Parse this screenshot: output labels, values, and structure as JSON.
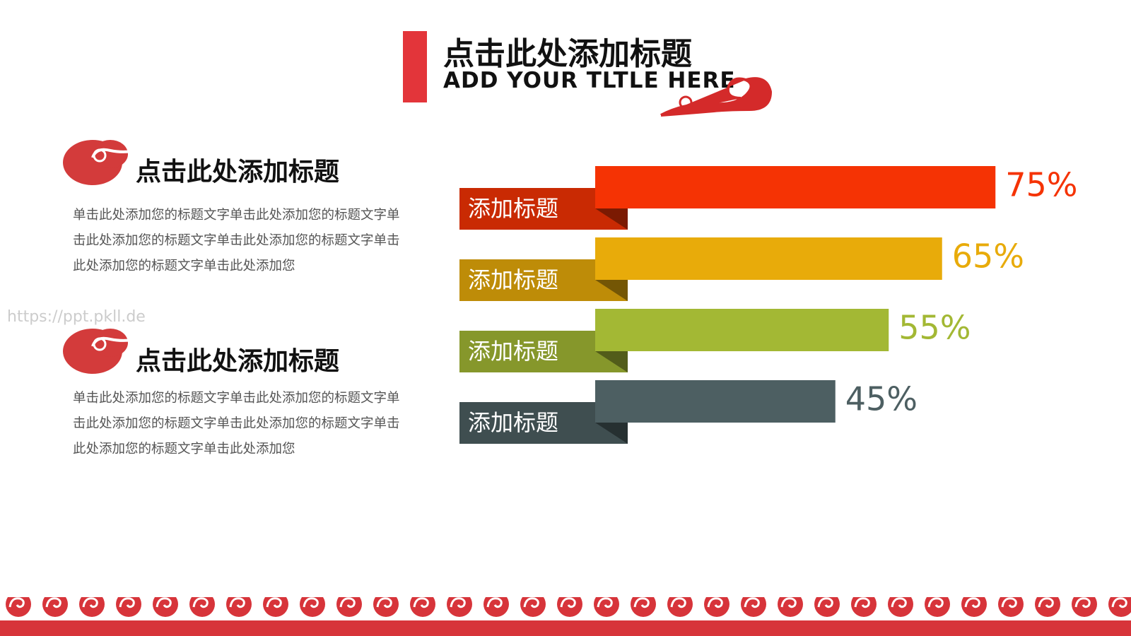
{
  "header": {
    "title": "点击此处添加标题",
    "subtitle": "ADD YOUR TLTLE HERE"
  },
  "watermark": "https://ppt.pkll.de",
  "sections": [
    {
      "heading": "点击此处添加标题",
      "text": "单击此处添加您的标题文字单击此处添加您的标题文字单击此处添加您的标题文字单击此处添加您的标题文字单击此处添加您的标题文字单击此处添加您"
    },
    {
      "heading": "点击此处添加标题",
      "text": "单击此处添加您的标题文字单击此处添加您的标题文字单击此处添加您的标题文字单击此处添加您的标题文字单击此处添加您的标题文字单击此处添加您"
    }
  ],
  "chart_data": {
    "type": "bar",
    "orientation": "horizontal",
    "categories": [
      "添加标题",
      "添加标题",
      "添加标题",
      "添加标题"
    ],
    "values": [
      75,
      65,
      55,
      45
    ],
    "value_labels": [
      "75%",
      "65%",
      "55%",
      "45%"
    ],
    "colors": [
      "#f53304",
      "#e8ab0a",
      "#a3b834",
      "#4d5f62"
    ]
  }
}
